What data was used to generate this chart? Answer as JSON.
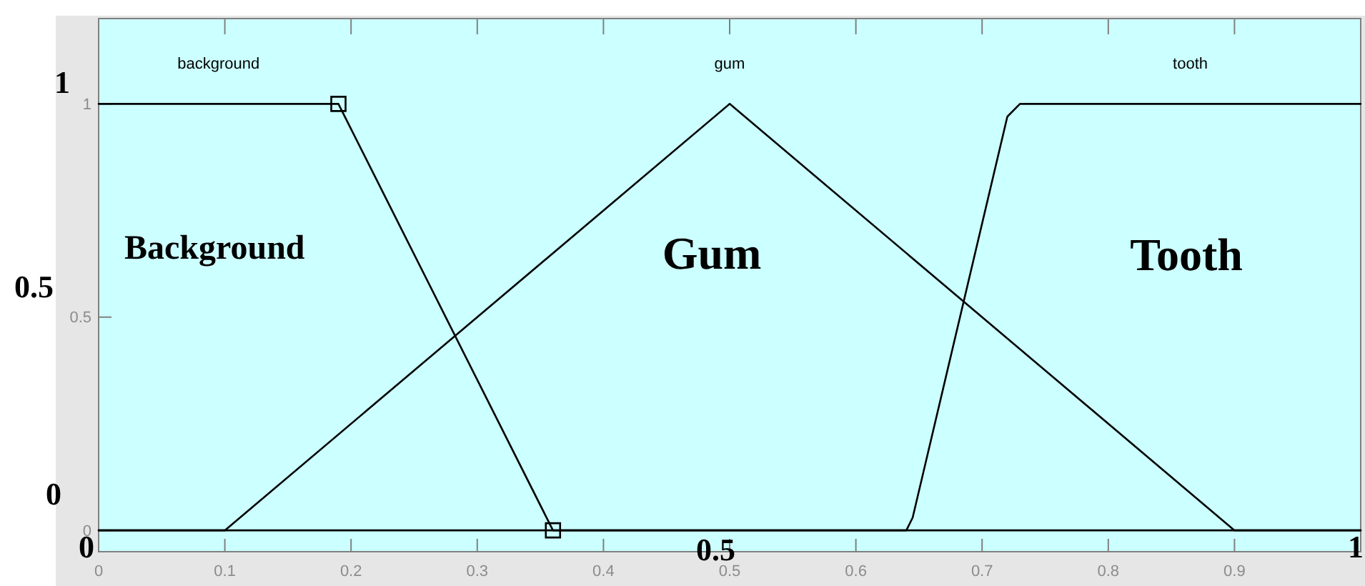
{
  "chart_data": {
    "type": "line",
    "xlim": [
      0,
      1
    ],
    "ylim": [
      -0.05,
      1.2
    ],
    "xticks": [
      0,
      0.1,
      0.2,
      0.3,
      0.4,
      0.5,
      0.6,
      0.7,
      0.8,
      0.9
    ],
    "yticks": [
      0,
      0.5,
      1
    ],
    "annotations": [
      "Background",
      "Gum",
      "Tooth",
      "1",
      "0.5",
      "0",
      "0",
      "0.5",
      "1"
    ],
    "series": [
      {
        "name": "background",
        "color": "#000000",
        "x": [
          0,
          0.19,
          0.36,
          1
        ],
        "values": [
          1,
          1,
          0,
          0
        ]
      },
      {
        "name": "gum",
        "color": "#000000",
        "x": [
          0,
          0.1,
          0.5,
          0.9,
          1
        ],
        "values": [
          0,
          0,
          1,
          0,
          0
        ]
      },
      {
        "name": "tooth",
        "color": "#000000",
        "x": [
          0,
          0.64,
          0.645,
          0.72,
          0.73,
          1
        ],
        "values": [
          0,
          0,
          0.03,
          0.97,
          1,
          1
        ]
      },
      {
        "type": "scatter",
        "color": "#000000",
        "marker": "square",
        "x": [
          0.19,
          0.36
        ],
        "values": [
          1,
          0
        ]
      }
    ]
  }
}
